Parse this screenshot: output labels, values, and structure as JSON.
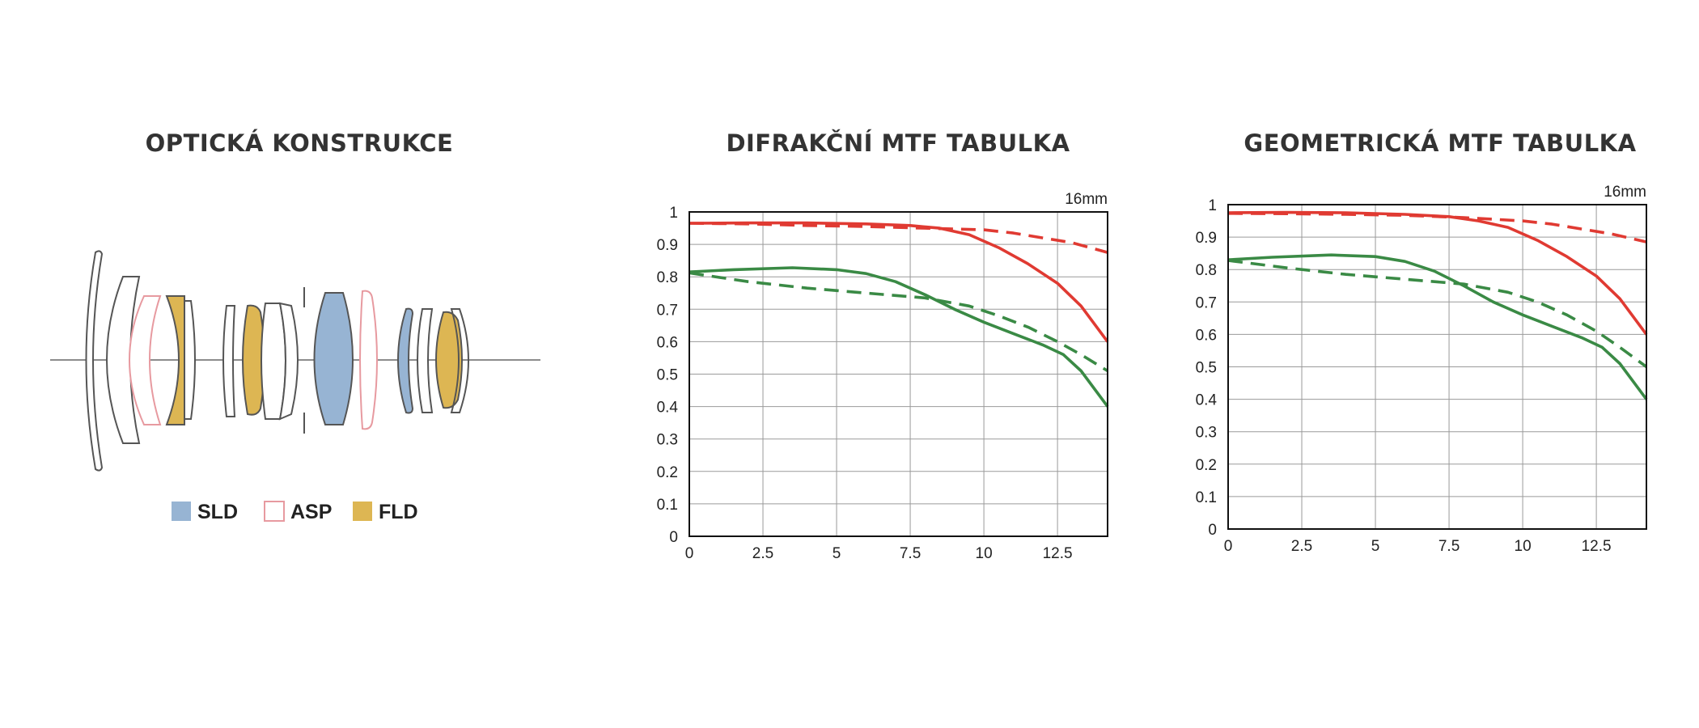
{
  "titles": {
    "optics": "OPTICKÁ KONSTRUKCE",
    "diffraction": "DIFRAKČNÍ MTF TABULKA",
    "geometric": "GEOMETRICKÁ MTF TABULKA"
  },
  "legend": [
    {
      "label": "SLD",
      "color": "#97b4d3",
      "style": "filled"
    },
    {
      "label": "ASP",
      "color": "#e79aa0",
      "style": "outline"
    },
    {
      "label": "FLD",
      "color": "#ddb653",
      "style": "filled"
    }
  ],
  "colors": {
    "sagittal_red": "#e03a32",
    "green": "#3a8a45",
    "sld": "#97b4d3",
    "fld": "#ddb653",
    "asp": "#e79aa0"
  },
  "chart_data": [
    {
      "type": "line",
      "title": "DIFRAKČNÍ MTF TABULKA",
      "corner_label": "16mm",
      "xlim": [
        0,
        14.2
      ],
      "ylim": [
        0,
        1
      ],
      "xticks": [
        "0",
        "2.5",
        "5",
        "7.5",
        "10",
        "12.5"
      ],
      "xtick_values": [
        0,
        2.5,
        5,
        7.5,
        10,
        12.5
      ],
      "yticks": [
        "0",
        "0.1",
        "0.2",
        "0.3",
        "0.4",
        "0.5",
        "0.6",
        "0.7",
        "0.8",
        "0.9",
        "1"
      ],
      "ytick_values": [
        0,
        0.1,
        0.2,
        0.3,
        0.4,
        0.5,
        0.6,
        0.7,
        0.8,
        0.9,
        1
      ],
      "grid": true,
      "series": [
        {
          "color": "#e03a32",
          "dash": false,
          "x": [
            0,
            2,
            4,
            6,
            7.5,
            8.5,
            9.5,
            10.5,
            11.5,
            12.5,
            13.3,
            14.2
          ],
          "y": [
            0.965,
            0.966,
            0.966,
            0.963,
            0.958,
            0.95,
            0.93,
            0.89,
            0.84,
            0.78,
            0.71,
            0.6
          ]
        },
        {
          "color": "#e03a32",
          "dash": true,
          "x": [
            0,
            2,
            4,
            6,
            8,
            10,
            11,
            12,
            13,
            14.2
          ],
          "y": [
            0.965,
            0.963,
            0.958,
            0.955,
            0.95,
            0.945,
            0.935,
            0.92,
            0.905,
            0.875
          ]
        },
        {
          "color": "#3a8a45",
          "dash": false,
          "x": [
            0,
            1.5,
            3.5,
            5,
            6,
            7,
            8,
            9,
            10,
            11,
            12,
            12.7,
            13.3,
            14.2
          ],
          "y": [
            0.815,
            0.822,
            0.828,
            0.822,
            0.81,
            0.785,
            0.745,
            0.7,
            0.66,
            0.625,
            0.59,
            0.56,
            0.51,
            0.4
          ]
        },
        {
          "color": "#3a8a45",
          "dash": true,
          "x": [
            0,
            2,
            4,
            6,
            8,
            9.5,
            10.5,
            11.5,
            12.5,
            13.3,
            14.2
          ],
          "y": [
            0.812,
            0.785,
            0.765,
            0.75,
            0.735,
            0.71,
            0.68,
            0.645,
            0.6,
            0.56,
            0.51
          ]
        }
      ]
    },
    {
      "type": "line",
      "title": "GEOMETRICKÁ MTF TABULKA",
      "corner_label": "16mm",
      "xlim": [
        0,
        14.2
      ],
      "ylim": [
        0,
        1
      ],
      "xticks": [
        "0",
        "2.5",
        "5",
        "7.5",
        "10",
        "12.5"
      ],
      "xtick_values": [
        0,
        2.5,
        5,
        7.5,
        10,
        12.5
      ],
      "yticks": [
        "0",
        "0.1",
        "0.2",
        "0.3",
        "0.4",
        "0.5",
        "0.6",
        "0.7",
        "0.8",
        "0.9",
        "1"
      ],
      "ytick_values": [
        0,
        0.1,
        0.2,
        0.3,
        0.4,
        0.5,
        0.6,
        0.7,
        0.8,
        0.9,
        1
      ],
      "grid": true,
      "series": [
        {
          "color": "#e03a32",
          "dash": false,
          "x": [
            0,
            2,
            4,
            6,
            7.5,
            8.5,
            9.5,
            10.5,
            11.5,
            12.5,
            13.3,
            14.2
          ],
          "y": [
            0.975,
            0.976,
            0.975,
            0.97,
            0.963,
            0.95,
            0.93,
            0.89,
            0.84,
            0.78,
            0.71,
            0.6
          ]
        },
        {
          "color": "#e03a32",
          "dash": true,
          "x": [
            0,
            2,
            4,
            6,
            8,
            10,
            11,
            12,
            13,
            14.2
          ],
          "y": [
            0.973,
            0.972,
            0.97,
            0.967,
            0.96,
            0.95,
            0.94,
            0.925,
            0.91,
            0.885
          ]
        },
        {
          "color": "#3a8a45",
          "dash": false,
          "x": [
            0,
            1.5,
            3.5,
            5,
            6,
            7,
            8,
            9,
            10,
            11,
            12,
            12.7,
            13.3,
            14.2
          ],
          "y": [
            0.83,
            0.838,
            0.845,
            0.84,
            0.825,
            0.795,
            0.75,
            0.7,
            0.66,
            0.625,
            0.59,
            0.56,
            0.51,
            0.4
          ]
        },
        {
          "color": "#3a8a45",
          "dash": true,
          "x": [
            0,
            2,
            4,
            6,
            8,
            9.5,
            10.5,
            11.5,
            12.5,
            13.3,
            14.2
          ],
          "y": [
            0.828,
            0.805,
            0.785,
            0.77,
            0.755,
            0.73,
            0.7,
            0.66,
            0.61,
            0.56,
            0.5
          ]
        }
      ]
    }
  ]
}
